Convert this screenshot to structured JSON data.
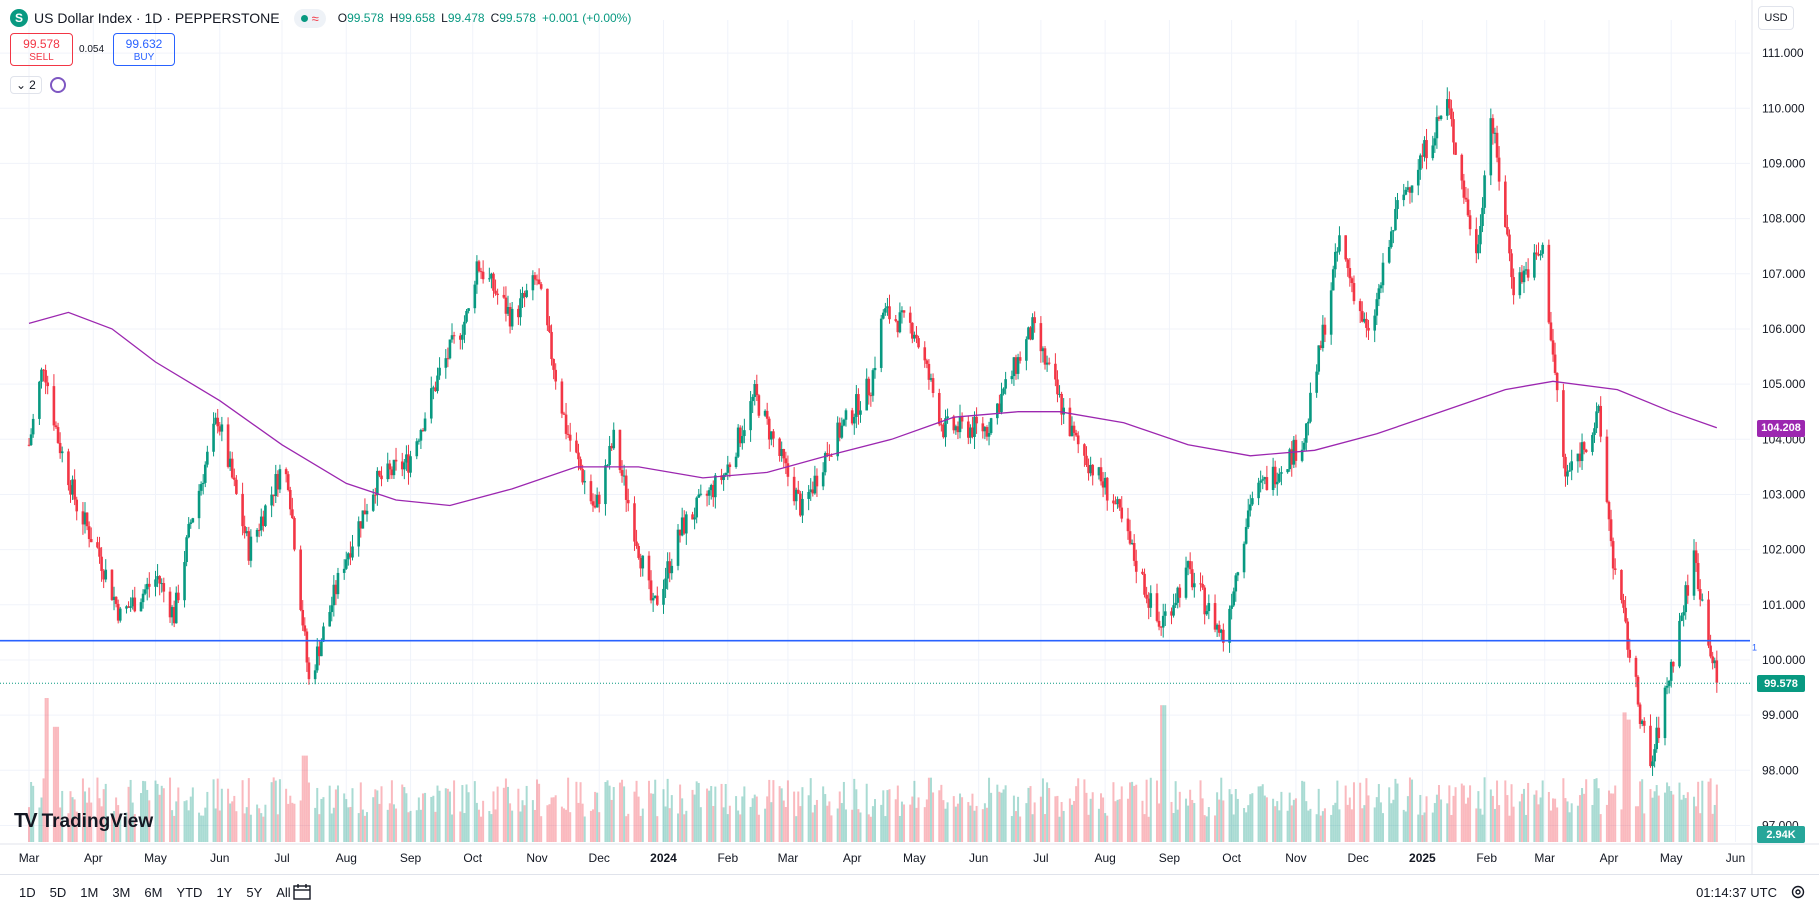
{
  "header": {
    "symbol_badge": "S",
    "title": "US Dollar Index · 1D · PEPPERSTONE",
    "approx_icon": "≈",
    "ohlc": [
      {
        "k": "O",
        "v": "99.578"
      },
      {
        "k": "H",
        "v": "99.658"
      },
      {
        "k": "L",
        "v": "99.478"
      },
      {
        "k": "C",
        "v": "99.578"
      },
      {
        "k": "",
        "v": "+0.001 (+0.00%)"
      }
    ]
  },
  "trade": {
    "sell_price": "99.578",
    "sell_label": "SELL",
    "spread": "0.054",
    "buy_price": "99.632",
    "buy_label": "BUY"
  },
  "indicators": {
    "count": "2",
    "chevron": "⌄"
  },
  "currency": "USD",
  "branding": {
    "logo_mark": "TV",
    "logo_text": "TradingView"
  },
  "bottom_bar": {
    "timeframes": [
      "1D",
      "5D",
      "1M",
      "3M",
      "6M",
      "YTD",
      "1Y",
      "5Y",
      "All"
    ],
    "clock": "01:14:37 UTC"
  },
  "colors": {
    "up": "#089981",
    "down": "#f23645",
    "ma": "#9c27b0",
    "hline": "#2962ff",
    "grid": "#f0f3fa"
  },
  "chart_data": {
    "type": "candlestick",
    "title": "US Dollar Index · 1D · PEPPERSTONE",
    "ylim": [
      96.7,
      111.6
    ],
    "y_ticks": [
      "111.000",
      "110.000",
      "109.000",
      "108.000",
      "107.000",
      "106.000",
      "105.000",
      "104.000",
      "103.000",
      "102.000",
      "101.000",
      "100.000",
      "99.000",
      "98.000",
      "97.000"
    ],
    "y_tick_values": [
      111,
      110,
      109,
      108,
      107,
      106,
      105,
      104,
      103,
      102,
      101,
      100,
      99,
      98,
      97
    ],
    "x_labels": [
      "Mar",
      "Apr",
      "May",
      "Jun",
      "Jul",
      "Aug",
      "Sep",
      "Oct",
      "Nov",
      "Dec",
      "2024",
      "Feb",
      "Mar",
      "Apr",
      "May",
      "Jun",
      "Jul",
      "Aug",
      "Sep",
      "Oct",
      "Nov",
      "Dec",
      "2025",
      "Feb",
      "Mar",
      "Apr",
      "May",
      "Jun"
    ],
    "x_label_bold": [
      "2024",
      "2025"
    ],
    "x_label_month_index": [
      0,
      1,
      2,
      3,
      4,
      5,
      6,
      7,
      8,
      9,
      10,
      11,
      12,
      13,
      14,
      15,
      16,
      17,
      18,
      19,
      20,
      21,
      22,
      23,
      24,
      25,
      26,
      27
    ],
    "price_path": [
      [
        "Mar 1 2023",
        103.9
      ],
      [
        "Mar 8 2023",
        105.4
      ],
      [
        "Mar 15 2023",
        104.0
      ],
      [
        "Mar 24 2023",
        102.8
      ],
      [
        "Apr 3 2023",
        102.0
      ],
      [
        "Apr 14 2023",
        100.8
      ],
      [
        "May 2 2023",
        101.5
      ],
      [
        "May 10 2023",
        100.8
      ],
      [
        "May 18 2023",
        102.5
      ],
      [
        "May 31 2023",
        104.4
      ],
      [
        "Jun 15 2023",
        102.0
      ],
      [
        "Jun 30 2023",
        103.4
      ],
      [
        "Jul 4 2023",
        103.3
      ],
      [
        "Jul 14 2023",
        99.6
      ],
      [
        "Jul 31 2023",
        101.8
      ],
      [
        "Aug 15 2023",
        103.2
      ],
      [
        "Aug 31 2023",
        103.6
      ],
      [
        "Sep 15 2023",
        105.2
      ],
      [
        "Sep 29 2023",
        106.3
      ],
      [
        "Oct 3 2023",
        107.2
      ],
      [
        "Oct 20 2023",
        106.2
      ],
      [
        "Nov 1 2023",
        106.9
      ],
      [
        "Nov 15 2023",
        104.2
      ],
      [
        "Nov 29 2023",
        102.7
      ],
      [
        "Dec 8 2023",
        104.0
      ],
      [
        "Dec 27 2023",
        100.9
      ],
      [
        "Jan 10 2024",
        102.4
      ],
      [
        "Jan 31 2024",
        103.4
      ],
      [
        "Feb 14 2024",
        104.8
      ],
      [
        "Mar 8 2024",
        102.7
      ],
      [
        "Mar 20 2024",
        103.8
      ],
      [
        "Apr 10 2024",
        105.0
      ],
      [
        "Apr 16 2024",
        106.3
      ],
      [
        "May 1 2024",
        106.0
      ],
      [
        "May 15 2024",
        104.2
      ],
      [
        "Jun 5 2024",
        104.2
      ],
      [
        "Jun 27 2024",
        106.0
      ],
      [
        "Jul 17 2024",
        104.0
      ],
      [
        "Aug 5 2024",
        102.9
      ],
      [
        "Aug 27 2024",
        100.6
      ],
      [
        "Sep 10 2024",
        101.6
      ],
      [
        "Sep 27 2024",
        100.4
      ],
      [
        "Oct 10 2024",
        102.9
      ],
      [
        "Nov 5 2024",
        104.0
      ],
      [
        "Nov 22 2024",
        107.6
      ],
      [
        "Dec 6 2024",
        105.8
      ],
      [
        "Dec 20 2024",
        108.2
      ],
      [
        "Jan 13 2025",
        110.1
      ],
      [
        "Jan 27 2025",
        107.3
      ],
      [
        "Feb 3 2025",
        109.9
      ],
      [
        "Feb 14 2025",
        106.8
      ],
      [
        "Feb 28 2025",
        107.4
      ],
      [
        "Mar 11 2025",
        103.3
      ],
      [
        "Mar 27 2025",
        104.4
      ],
      [
        "Apr 3 2025",
        101.8
      ],
      [
        "Apr 21 2025",
        98.0
      ],
      [
        "May 1 2025",
        99.9
      ],
      [
        "May 12 2025",
        101.9
      ],
      [
        "May 23 2025",
        99.578
      ]
    ],
    "ma_path": [
      [
        "Mar 1 2023",
        106.1
      ],
      [
        "Mar 20 2023",
        106.3
      ],
      [
        "Apr 10 2023",
        106.0
      ],
      [
        "May 1 2023",
        105.4
      ],
      [
        "Jun 1 2023",
        104.7
      ],
      [
        "Jul 1 2023",
        103.9
      ],
      [
        "Aug 1 2023",
        103.2
      ],
      [
        "Aug 25 2023",
        102.9
      ],
      [
        "Sep 20 2023",
        102.8
      ],
      [
        "Oct 20 2023",
        103.1
      ],
      [
        "Nov 20 2023",
        103.5
      ],
      [
        "Dec 20 2023",
        103.5
      ],
      [
        "Jan 20 2024",
        103.3
      ],
      [
        "Feb 20 2024",
        103.4
      ],
      [
        "Mar 20 2024",
        103.7
      ],
      [
        "Apr 20 2024",
        104.0
      ],
      [
        "May 20 2024",
        104.4
      ],
      [
        "Jun 20 2024",
        104.5
      ],
      [
        "Jul 10 2024",
        104.5
      ],
      [
        "Aug 10 2024",
        104.3
      ],
      [
        "Sep 10 2024",
        103.9
      ],
      [
        "Oct 10 2024",
        103.7
      ],
      [
        "Nov 10 2024",
        103.8
      ],
      [
        "Dec 10 2024",
        104.1
      ],
      [
        "Jan 10 2025",
        104.5
      ],
      [
        "Feb 10 2025",
        104.9
      ],
      [
        "Mar 5 2025",
        105.05
      ],
      [
        "Apr 5 2025",
        104.9
      ],
      [
        "May 1 2025",
        104.5
      ],
      [
        "May 23 2025",
        104.208
      ]
    ],
    "ma_last_label": "104.208",
    "last_price": 99.578,
    "last_price_label": "99.578",
    "horizontal_line": 100.35,
    "horizontal_line_label": "1",
    "volume_label": "2.94K",
    "volume_spikes": [
      [
        "Mar 10 2023",
        2.0
      ],
      [
        "Mar 14 2023",
        1.6
      ],
      [
        "Jul 12 2023",
        1.2
      ],
      [
        "Aug 29 2024",
        1.9
      ],
      [
        "Apr 9 2025",
        1.8
      ],
      [
        "Apr 11 2025",
        1.7
      ]
    ]
  }
}
